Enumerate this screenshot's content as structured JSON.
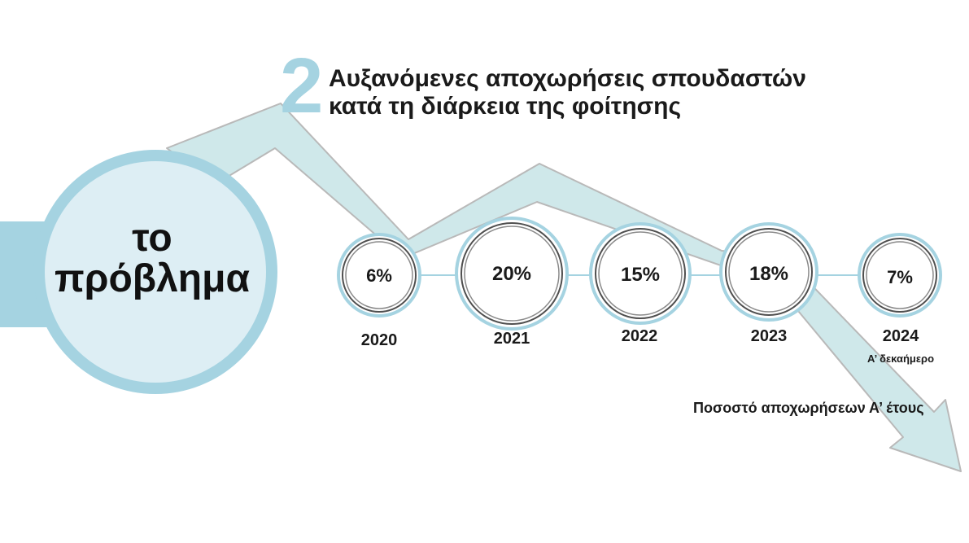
{
  "number": "2",
  "heading": {
    "line1": "Αυξανόμενες αποχωρήσεις σπουδαστών",
    "line2": "κατά τη διάρκεια της φοίτησης"
  },
  "problem": {
    "line1": "το",
    "line2": "πρόβλημα"
  },
  "items": [
    {
      "year": "2020",
      "value": "6%",
      "note": ""
    },
    {
      "year": "2021",
      "value": "20%",
      "note": ""
    },
    {
      "year": "2022",
      "value": "15%",
      "note": ""
    },
    {
      "year": "2023",
      "value": "18%",
      "note": ""
    },
    {
      "year": "2024",
      "value": "7%",
      "note": "Α’ δεκαήμερο"
    }
  ],
  "caption": "Ποσοστό αποχωρήσεων Α’ έτους",
  "colors": {
    "ring": "#a5d3e1",
    "circle_fill": "#ddeef4",
    "arrow_fill": "#cfe8ea",
    "arrow_stroke": "#b9b9b9",
    "text": "#1a1a1a"
  }
}
